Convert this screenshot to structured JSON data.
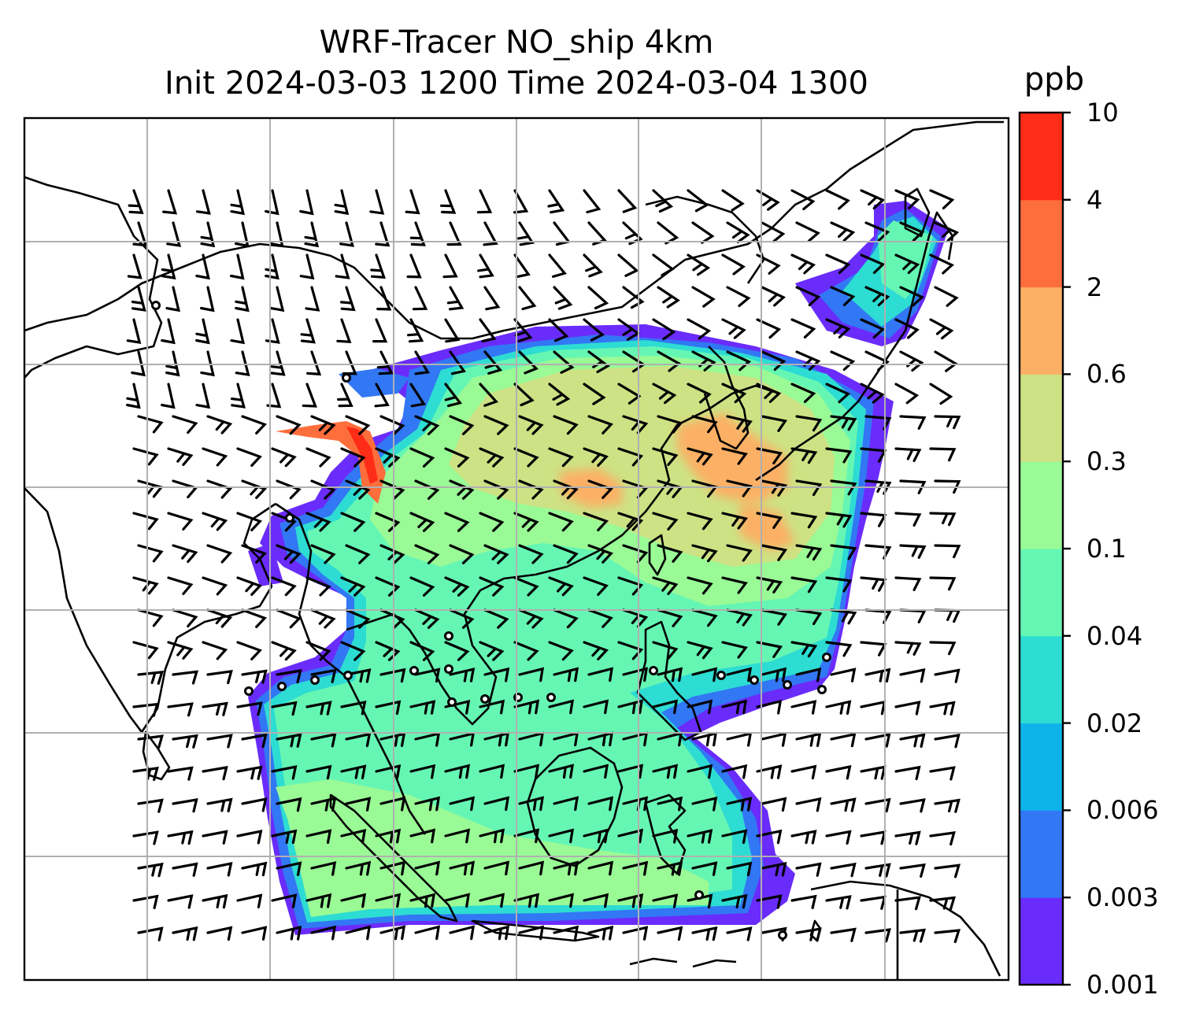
{
  "title": {
    "line1": "WRF-Tracer NO_ship 4km",
    "line2": "Init 2024-03-03 1200 Time 2024-03-04 1300"
  },
  "colorbar": {
    "unit": "ppb",
    "levels": [
      "0.001",
      "0.003",
      "0.006",
      "0.02",
      "0.02",
      "0.04",
      "0.1",
      "0.3",
      "0.6",
      "2",
      "4",
      "10"
    ],
    "tick_labels": [
      "0.001",
      "0.003",
      "0.006",
      "0.02",
      "0.04",
      "0.1",
      "0.3",
      "0.6",
      "2",
      "4",
      "10"
    ],
    "colors": [
      "#6a2cfa",
      "#3277f4",
      "#0eb2ea",
      "#2ddcd2",
      "#66f6b4",
      "#9afa96",
      "#cde284",
      "#fbb065",
      "#fe6e3c",
      "#ff2d17"
    ]
  },
  "map": {
    "field": "NO_ship tracer concentration (filled)",
    "overlay": "wind barbs",
    "grid": true,
    "coastlines": true
  }
}
